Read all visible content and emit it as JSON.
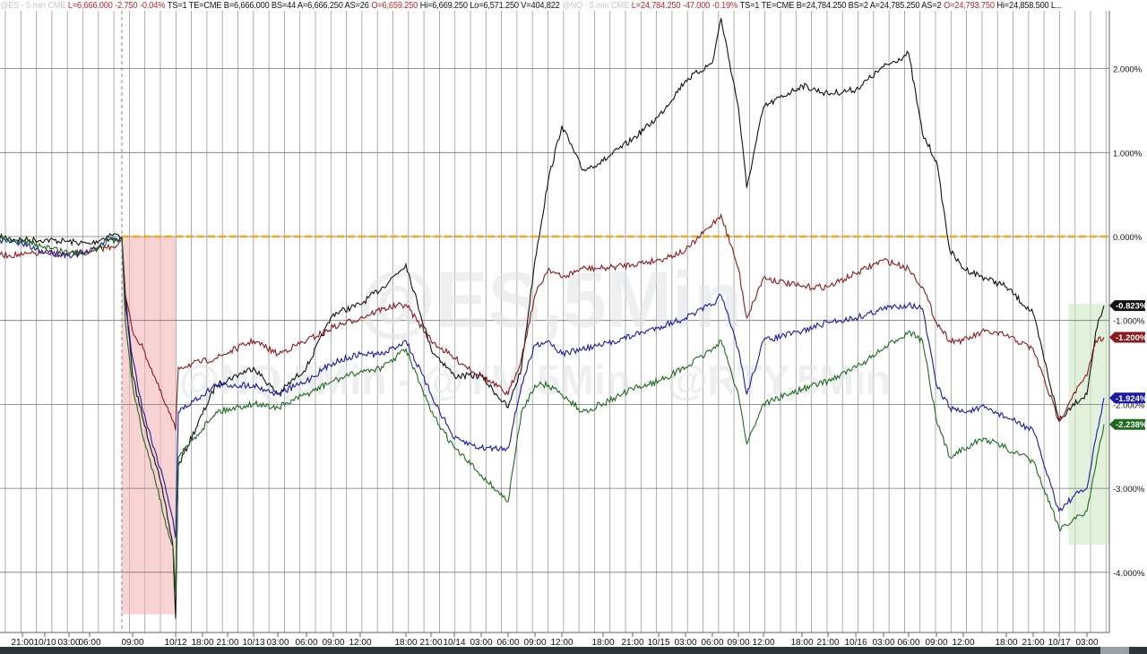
{
  "header": {
    "es": {
      "symbol": "@ES - 5 min",
      "exchange": "CME",
      "last": "L=6,666.000",
      "change": "-2.750",
      "change_pct": "-0.04%",
      "info": "TS=1  TE=CME  B=6,666.000  BS=44  A=6,666.250  AS=26",
      "open": "O=6,659.250",
      "range": "Hi=6,669.250  Lo=6,571.250  V=404,822"
    },
    "nq": {
      "symbol": "@NQ - 5 min",
      "exchange": "CME",
      "last": "L=24,784.250",
      "change": "-47.000",
      "change_pct": "-0.19%",
      "info": "TS=1  TE=CME  B=24,784.250  BS=2  A=24,785.250  AS=2",
      "open": "O=24,793.750",
      "range": "Hi=24,858.500  L..."
    }
  },
  "chart_data": {
    "type": "line",
    "watermark": [
      "@ES,5Min",
      "@NQ,5Min - @YM,5Min - @RTY,5Min"
    ],
    "ylabel_format": "percent",
    "ylim": [
      -4.7,
      2.8
    ],
    "y_ticks": [
      "2.000%",
      "1.000%",
      "0.000%",
      "-1.000%",
      "-2.000%",
      "-3.000%",
      "-4.000%"
    ],
    "y_tick_values": [
      2,
      1,
      0,
      -1,
      -2,
      -3,
      -4
    ],
    "x_ticks": [
      "21:00",
      "10/10",
      "03:00",
      "06:00",
      "09:00",
      "10/12",
      "18:00",
      "21:00",
      "10/13",
      "03:00",
      "06:00",
      "09:00",
      "12:00",
      "18:00",
      "21:00",
      "10/14",
      "03:00",
      "06:00",
      "09:00",
      "12:00",
      "18:00",
      "21:00",
      "10/15",
      "03:00",
      "06:00",
      "09:00",
      "12:00",
      "18:00",
      "21:00",
      "10/16",
      "03:00",
      "06:00",
      "09:00",
      "12:00",
      "18:00",
      "21:00",
      "10/17",
      "03:00"
    ],
    "grid": true,
    "reference_line": {
      "value": 0,
      "color": "#f5a623",
      "style": "dashed"
    },
    "highlight_regions": [
      {
        "from": "10/10 08:15",
        "to": "10/10 17:00",
        "y_from": 0,
        "y_to": -4.5,
        "color": "#f4b6b6"
      },
      {
        "from": "10/17 01:00",
        "to": "10/17 05:20",
        "y_from": -0.8,
        "y_to": -3.67,
        "color": "#cfe8c4"
      }
    ],
    "x": [
      "10/09 18:30",
      "10/09 21:00",
      "10/10 00:00",
      "10/10 03:00",
      "10/10 06:00",
      "10/10 07:30",
      "10/10 08:00",
      "10/10 08:15",
      "10/10 08:30",
      "10/10 09:00",
      "10/10 11:00",
      "10/10 13:00",
      "10/10 15:00",
      "10/10 16:30",
      "10/10 17:00",
      "10/12 18:00",
      "10/12 21:00",
      "10/13 00:00",
      "10/13 03:00",
      "10/13 06:00",
      "10/13 09:00",
      "10/13 12:00",
      "10/13 15:00",
      "10/13 18:00",
      "10/13 21:00",
      "10/14 00:00",
      "10/14 03:00",
      "10/14 06:00",
      "10/14 07:30",
      "10/14 09:00",
      "10/14 10:30",
      "10/14 12:00",
      "10/14 15:00",
      "10/14 18:00",
      "10/14 21:00",
      "10/15 00:00",
      "10/15 03:00",
      "10/15 06:00",
      "10/15 07:00",
      "10/15 09:00",
      "10/15 10:00",
      "10/15 12:00",
      "10/15 18:00",
      "10/15 21:00",
      "10/16 00:00",
      "10/16 03:00",
      "10/16 06:00",
      "10/16 07:30",
      "10/16 09:00",
      "10/16 10:30",
      "10/16 12:00",
      "10/16 15:00",
      "10/16 18:00",
      "10/16 21:00",
      "10/17 00:00",
      "10/17 01:30",
      "10/17 03:00",
      "10/17 04:00",
      "10/17 04:55"
    ],
    "series": [
      {
        "color": "#111111",
        "last_label": "-0.823%",
        "values": [
          -0.01,
          -0.04,
          -0.04,
          -0.06,
          -0.09,
          0.02,
          0.02,
          -0.01,
          -0.7,
          -1.66,
          -2.2,
          -2.63,
          -3.16,
          -3.69,
          -4.55,
          -2.73,
          -1.77,
          -1.56,
          -1.88,
          -1.56,
          -0.92,
          -0.81,
          -0.6,
          -0.33,
          -1.34,
          -1.66,
          -1.66,
          -2.04,
          -1.56,
          -0.28,
          0.68,
          1.32,
          0.79,
          0.9,
          1.16,
          1.43,
          1.86,
          2.07,
          2.6,
          1.54,
          0.58,
          1.54,
          1.8,
          1.7,
          1.75,
          2.02,
          2.18,
          1.22,
          0.9,
          -0.17,
          -0.38,
          -0.49,
          -0.6,
          -0.92,
          -2.2,
          -1.99,
          -1.88,
          -1.13,
          -0.823
        ]
      },
      {
        "color": "#8b1a1a",
        "last_label": "-1.200%",
        "values": [
          -0.22,
          -0.22,
          -0.19,
          -0.22,
          -0.17,
          -0.12,
          -0.09,
          -0.01,
          -0.7,
          -1.13,
          -1.34,
          -1.66,
          -1.99,
          -2.2,
          -2.31,
          -1.56,
          -1.45,
          -1.24,
          -1.4,
          -1.24,
          -1.08,
          -0.97,
          -0.86,
          -0.81,
          -1.24,
          -1.45,
          -1.66,
          -1.88,
          -1.45,
          -0.7,
          -0.38,
          -0.49,
          -0.38,
          -0.38,
          -0.33,
          -0.28,
          -0.17,
          0.15,
          0.26,
          -0.38,
          -0.97,
          -0.49,
          -0.6,
          -0.6,
          -0.44,
          -0.28,
          -0.38,
          -0.6,
          -1.02,
          -1.24,
          -1.24,
          -1.13,
          -1.18,
          -1.34,
          -2.2,
          -1.88,
          -1.66,
          -1.24,
          -1.2
        ]
      },
      {
        "color": "#1a1aa8",
        "last_label": "-1.924%",
        "values": [
          -0.04,
          -0.09,
          -0.19,
          -0.22,
          -0.19,
          -0.01,
          -0.06,
          -0.01,
          -0.81,
          -1.45,
          -2.09,
          -2.52,
          -2.95,
          -3.37,
          -3.59,
          -2.09,
          -1.77,
          -1.77,
          -1.88,
          -1.72,
          -1.5,
          -1.4,
          -1.4,
          -1.24,
          -1.88,
          -2.41,
          -2.52,
          -2.52,
          -1.77,
          -1.29,
          -1.24,
          -1.4,
          -1.34,
          -1.29,
          -1.18,
          -1.08,
          -0.97,
          -0.81,
          -0.7,
          -1.34,
          -1.88,
          -1.24,
          -1.13,
          -1.02,
          -0.97,
          -0.86,
          -0.81,
          -0.86,
          -1.77,
          -2.04,
          -2.09,
          -2.04,
          -2.15,
          -2.31,
          -3.27,
          -3.1,
          -3.0,
          -2.41,
          -1.924
        ]
      },
      {
        "color": "#1e6b1e",
        "last_label": "-2.238%",
        "values": [
          -0.03,
          -0.06,
          -0.12,
          -0.19,
          -0.19,
          -0.04,
          -0.06,
          -0.01,
          -1.02,
          -1.77,
          -2.41,
          -2.84,
          -3.37,
          -3.69,
          -4.23,
          -2.63,
          -2.09,
          -1.99,
          -2.04,
          -1.88,
          -1.72,
          -1.61,
          -1.56,
          -1.34,
          -2.09,
          -2.52,
          -2.84,
          -3.16,
          -2.09,
          -1.77,
          -1.77,
          -1.88,
          -2.09,
          -1.99,
          -1.82,
          -1.72,
          -1.56,
          -1.34,
          -1.24,
          -1.88,
          -2.47,
          -1.99,
          -1.82,
          -1.72,
          -1.56,
          -1.34,
          -1.13,
          -1.24,
          -2.2,
          -2.63,
          -2.52,
          -2.41,
          -2.52,
          -2.68,
          -3.48,
          -3.37,
          -3.27,
          -2.73,
          -2.238
        ]
      }
    ]
  }
}
